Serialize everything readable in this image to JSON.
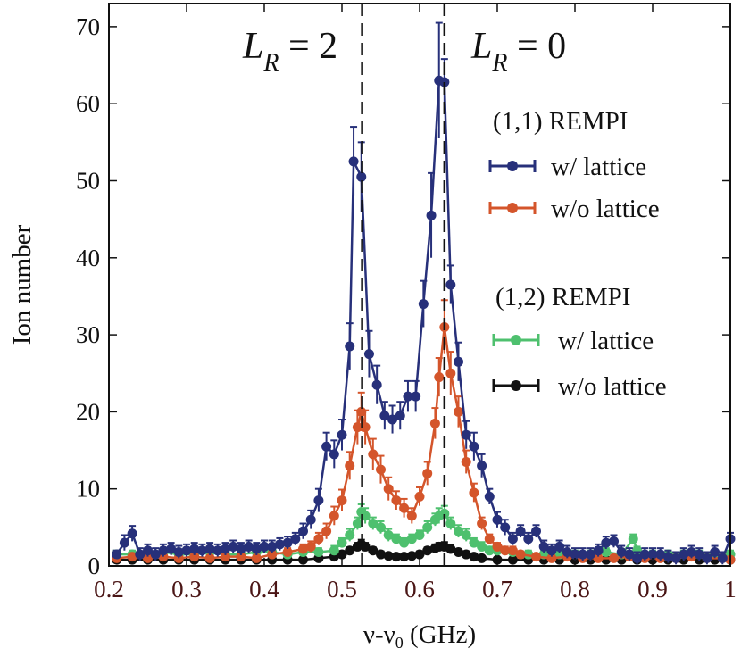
{
  "chart_data": {
    "type": "line",
    "xlabel_parts": {
      "main": "ν-ν",
      "sub": "0",
      "unit": " (GHz)"
    },
    "ylabel": "Ion number",
    "xlim": [
      0.2,
      1.0
    ],
    "ylim": [
      0,
      73
    ],
    "xticks": [
      "0.2",
      "0.3",
      "0.4",
      "0.5",
      "0.6",
      "0.7",
      "0.8",
      "0.9",
      "1"
    ],
    "yticks": [
      "0",
      "10",
      "20",
      "30",
      "40",
      "50",
      "60",
      "70"
    ],
    "annotations": [
      {
        "label_main": "L",
        "label_sub": "R",
        "label_rest": " = 2",
        "x": 0.526
      },
      {
        "label_main": "L",
        "label_sub": "R",
        "label_rest": " = 0",
        "x": 0.632
      }
    ],
    "legend_groups": [
      {
        "title": "(1,1) REMPI",
        "entries": [
          "w/ lattice",
          "w/o lattice"
        ]
      },
      {
        "title": "(1,2) REMPI",
        "entries": [
          "w/ lattice",
          "w/o lattice"
        ]
      }
    ],
    "series": [
      {
        "name": "(1,1) REMPI w/ lattice",
        "color": "#27307a",
        "x": [
          0.21,
          0.22,
          0.23,
          0.24,
          0.25,
          0.26,
          0.27,
          0.28,
          0.29,
          0.3,
          0.31,
          0.32,
          0.33,
          0.34,
          0.35,
          0.36,
          0.37,
          0.38,
          0.39,
          0.4,
          0.41,
          0.42,
          0.43,
          0.44,
          0.45,
          0.46,
          0.47,
          0.48,
          0.49,
          0.5,
          0.51,
          0.515,
          0.525,
          0.535,
          0.545,
          0.555,
          0.565,
          0.575,
          0.585,
          0.595,
          0.605,
          0.615,
          0.625,
          0.632,
          0.64,
          0.65,
          0.66,
          0.67,
          0.68,
          0.69,
          0.7,
          0.71,
          0.72,
          0.73,
          0.74,
          0.75,
          0.76,
          0.77,
          0.78,
          0.79,
          0.8,
          0.81,
          0.82,
          0.83,
          0.84,
          0.85,
          0.86,
          0.87,
          0.88,
          0.89,
          0.9,
          0.91,
          0.92,
          0.93,
          0.94,
          0.95,
          0.96,
          0.97,
          0.98,
          0.99,
          1.0
        ],
        "y": [
          1.5,
          3.0,
          4.2,
          1.5,
          2.0,
          1.5,
          2.0,
          2.2,
          1.8,
          2.0,
          2.2,
          2.0,
          2.2,
          2.0,
          2.2,
          2.5,
          2.2,
          2.5,
          2.2,
          2.5,
          2.5,
          2.8,
          3.0,
          3.5,
          4.5,
          6.0,
          8.5,
          15.5,
          14.5,
          17.0,
          28.5,
          52.5,
          50.5,
          27.5,
          23.5,
          19.5,
          19.0,
          19.5,
          22.0,
          22.0,
          34.0,
          45.5,
          63.0,
          62.8,
          36.5,
          26.5,
          17.0,
          15.5,
          13.0,
          9.0,
          6.0,
          5.0,
          3.5,
          4.5,
          3.5,
          4.5,
          2.5,
          2.0,
          2.5,
          1.8,
          1.5,
          1.5,
          1.5,
          2.0,
          3.0,
          3.2,
          1.8,
          1.5,
          1.0,
          1.5,
          1.5,
          1.5,
          1.2,
          1.0,
          1.5,
          1.8,
          1.5,
          1.0,
          1.8,
          1.0,
          3.5
        ],
        "err": [
          0.5,
          1.0,
          1.0,
          0.8,
          0.8,
          0.8,
          0.8,
          0.8,
          0.8,
          0.8,
          0.8,
          0.8,
          0.8,
          0.8,
          0.8,
          0.8,
          0.8,
          0.8,
          0.8,
          0.8,
          0.8,
          0.8,
          0.8,
          0.8,
          1.0,
          1.2,
          1.5,
          1.8,
          1.8,
          2.0,
          3.0,
          4.5,
          4.5,
          3.0,
          2.5,
          1.8,
          1.8,
          1.8,
          2.0,
          2.0,
          3.0,
          5.5,
          7.5,
          3.0,
          2.5,
          2.5,
          1.8,
          1.8,
          1.5,
          1.0,
          1.0,
          1.0,
          0.8,
          0.8,
          0.8,
          0.8,
          0.8,
          0.8,
          0.8,
          0.8,
          0.8,
          0.8,
          0.8,
          0.8,
          0.8,
          0.8,
          0.8,
          0.8,
          0.8,
          0.8,
          0.8,
          0.8,
          0.8,
          0.8,
          0.8,
          0.8,
          0.8,
          0.8,
          0.8,
          0.8,
          0.8
        ]
      },
      {
        "name": "(1,1) REMPI w/o lattice",
        "color": "#d4552b",
        "x": [
          0.21,
          0.23,
          0.25,
          0.27,
          0.29,
          0.31,
          0.33,
          0.35,
          0.37,
          0.39,
          0.41,
          0.43,
          0.45,
          0.46,
          0.47,
          0.48,
          0.49,
          0.5,
          0.51,
          0.52,
          0.525,
          0.53,
          0.54,
          0.55,
          0.56,
          0.57,
          0.58,
          0.59,
          0.6,
          0.61,
          0.62,
          0.625,
          0.632,
          0.64,
          0.65,
          0.66,
          0.67,
          0.68,
          0.69,
          0.7,
          0.71,
          0.72,
          0.73,
          0.75,
          0.77,
          0.79,
          0.81,
          0.83,
          0.85,
          0.87,
          0.89,
          0.91,
          0.93,
          0.95,
          0.97,
          0.99,
          1.0
        ],
        "y": [
          1.0,
          1.2,
          1.0,
          1.2,
          1.0,
          1.2,
          1.0,
          1.2,
          1.2,
          1.0,
          1.5,
          1.8,
          2.2,
          2.5,
          3.5,
          4.5,
          6.5,
          8.5,
          13.0,
          18.0,
          20.0,
          18.0,
          14.5,
          12.5,
          10.0,
          8.5,
          7.5,
          6.5,
          9.0,
          12.0,
          18.5,
          24.5,
          31.0,
          25.0,
          20.0,
          13.5,
          9.5,
          5.5,
          3.5,
          2.5,
          2.0,
          2.0,
          1.5,
          1.2,
          1.0,
          1.2,
          1.0,
          1.0,
          1.0,
          1.2,
          1.0,
          1.0,
          1.0,
          1.2,
          1.0,
          1.0,
          0.8
        ],
        "err": [
          0.4,
          0.4,
          0.4,
          0.4,
          0.4,
          0.4,
          0.4,
          0.4,
          0.4,
          0.4,
          0.5,
          0.5,
          0.6,
          0.7,
          0.8,
          1.0,
          1.2,
          1.4,
          1.8,
          2.2,
          2.5,
          2.2,
          2.0,
          1.8,
          1.5,
          1.2,
          1.2,
          1.0,
          1.2,
          1.5,
          2.0,
          2.5,
          3.5,
          2.8,
          2.0,
          1.5,
          1.2,
          0.8,
          0.6,
          0.5,
          0.5,
          0.5,
          0.4,
          0.4,
          0.4,
          0.4,
          0.4,
          0.4,
          0.4,
          0.4,
          0.4,
          0.4,
          0.4,
          0.4,
          0.4,
          0.4,
          0.4
        ]
      },
      {
        "name": "(1,2) REMPI w/ lattice",
        "color": "#4ec06e",
        "x": [
          0.21,
          0.23,
          0.25,
          0.27,
          0.29,
          0.31,
          0.33,
          0.35,
          0.37,
          0.39,
          0.41,
          0.43,
          0.45,
          0.47,
          0.49,
          0.5,
          0.51,
          0.52,
          0.525,
          0.53,
          0.54,
          0.55,
          0.56,
          0.57,
          0.58,
          0.59,
          0.6,
          0.61,
          0.62,
          0.625,
          0.632,
          0.64,
          0.65,
          0.66,
          0.67,
          0.68,
          0.69,
          0.7,
          0.72,
          0.74,
          0.76,
          0.78,
          0.8,
          0.82,
          0.84,
          0.86,
          0.875,
          0.88,
          0.9,
          0.92,
          0.94,
          0.96,
          0.98,
          1.0
        ],
        "y": [
          1.5,
          1.5,
          1.5,
          1.8,
          1.5,
          1.5,
          1.8,
          1.5,
          1.5,
          1.8,
          1.8,
          1.5,
          1.8,
          1.8,
          2.0,
          3.0,
          4.0,
          5.5,
          7.0,
          6.5,
          5.5,
          5.0,
          4.0,
          3.5,
          3.0,
          3.5,
          4.0,
          5.0,
          6.0,
          6.5,
          6.8,
          5.5,
          4.5,
          4.0,
          3.0,
          2.5,
          2.0,
          2.0,
          1.8,
          1.5,
          1.5,
          1.5,
          1.5,
          1.5,
          1.8,
          1.5,
          3.5,
          2.0,
          1.5,
          1.5,
          1.5,
          1.5,
          1.5,
          1.5
        ],
        "err": [
          0.5,
          0.5,
          0.5,
          0.5,
          0.5,
          0.5,
          0.5,
          0.5,
          0.5,
          0.5,
          0.5,
          0.5,
          0.5,
          0.5,
          0.6,
          0.6,
          0.8,
          0.8,
          1.0,
          1.0,
          0.8,
          0.8,
          0.8,
          0.6,
          0.6,
          0.6,
          0.6,
          0.8,
          0.8,
          1.0,
          1.0,
          0.8,
          0.8,
          0.8,
          0.6,
          0.6,
          0.5,
          0.5,
          0.5,
          0.5,
          0.5,
          0.5,
          0.5,
          0.5,
          0.5,
          0.5,
          0.6,
          0.5,
          0.5,
          0.5,
          0.5,
          0.5,
          0.5,
          0.5
        ]
      },
      {
        "name": "(1,2) REMPI w/o lattice",
        "color": "#111111",
        "x": [
          0.21,
          0.23,
          0.25,
          0.27,
          0.29,
          0.31,
          0.33,
          0.35,
          0.37,
          0.39,
          0.41,
          0.43,
          0.45,
          0.47,
          0.49,
          0.5,
          0.51,
          0.52,
          0.525,
          0.53,
          0.54,
          0.55,
          0.56,
          0.57,
          0.58,
          0.59,
          0.6,
          0.61,
          0.62,
          0.625,
          0.632,
          0.64,
          0.65,
          0.66,
          0.67,
          0.68,
          0.7,
          0.72,
          0.74,
          0.76,
          0.78,
          0.8,
          0.82,
          0.84,
          0.86,
          0.88,
          0.9,
          0.92,
          0.94,
          0.96,
          0.98,
          1.0
        ],
        "y": [
          0.8,
          0.8,
          0.8,
          0.8,
          0.8,
          0.8,
          0.8,
          0.8,
          0.8,
          0.8,
          0.8,
          0.8,
          0.8,
          1.0,
          1.2,
          1.5,
          2.0,
          2.5,
          2.8,
          2.5,
          2.0,
          1.5,
          1.3,
          1.2,
          1.2,
          1.3,
          1.5,
          2.0,
          2.3,
          2.5,
          2.5,
          2.2,
          1.8,
          1.5,
          1.2,
          1.0,
          0.8,
          0.8,
          0.8,
          0.8,
          0.8,
          0.8,
          0.8,
          0.8,
          0.8,
          0.8,
          0.8,
          0.8,
          0.8,
          0.8,
          0.8,
          0.8
        ],
        "err": [
          0.3,
          0.3,
          0.3,
          0.3,
          0.3,
          0.3,
          0.3,
          0.3,
          0.3,
          0.3,
          0.3,
          0.3,
          0.3,
          0.3,
          0.3,
          0.4,
          0.4,
          0.5,
          0.6,
          0.5,
          0.4,
          0.4,
          0.3,
          0.3,
          0.3,
          0.3,
          0.4,
          0.4,
          0.5,
          0.5,
          0.6,
          0.5,
          0.4,
          0.4,
          0.3,
          0.3,
          0.3,
          0.3,
          0.3,
          0.3,
          0.3,
          0.3,
          0.3,
          0.3,
          0.3,
          0.3,
          0.3,
          0.3,
          0.3,
          0.3,
          0.3,
          0.3
        ]
      }
    ]
  }
}
